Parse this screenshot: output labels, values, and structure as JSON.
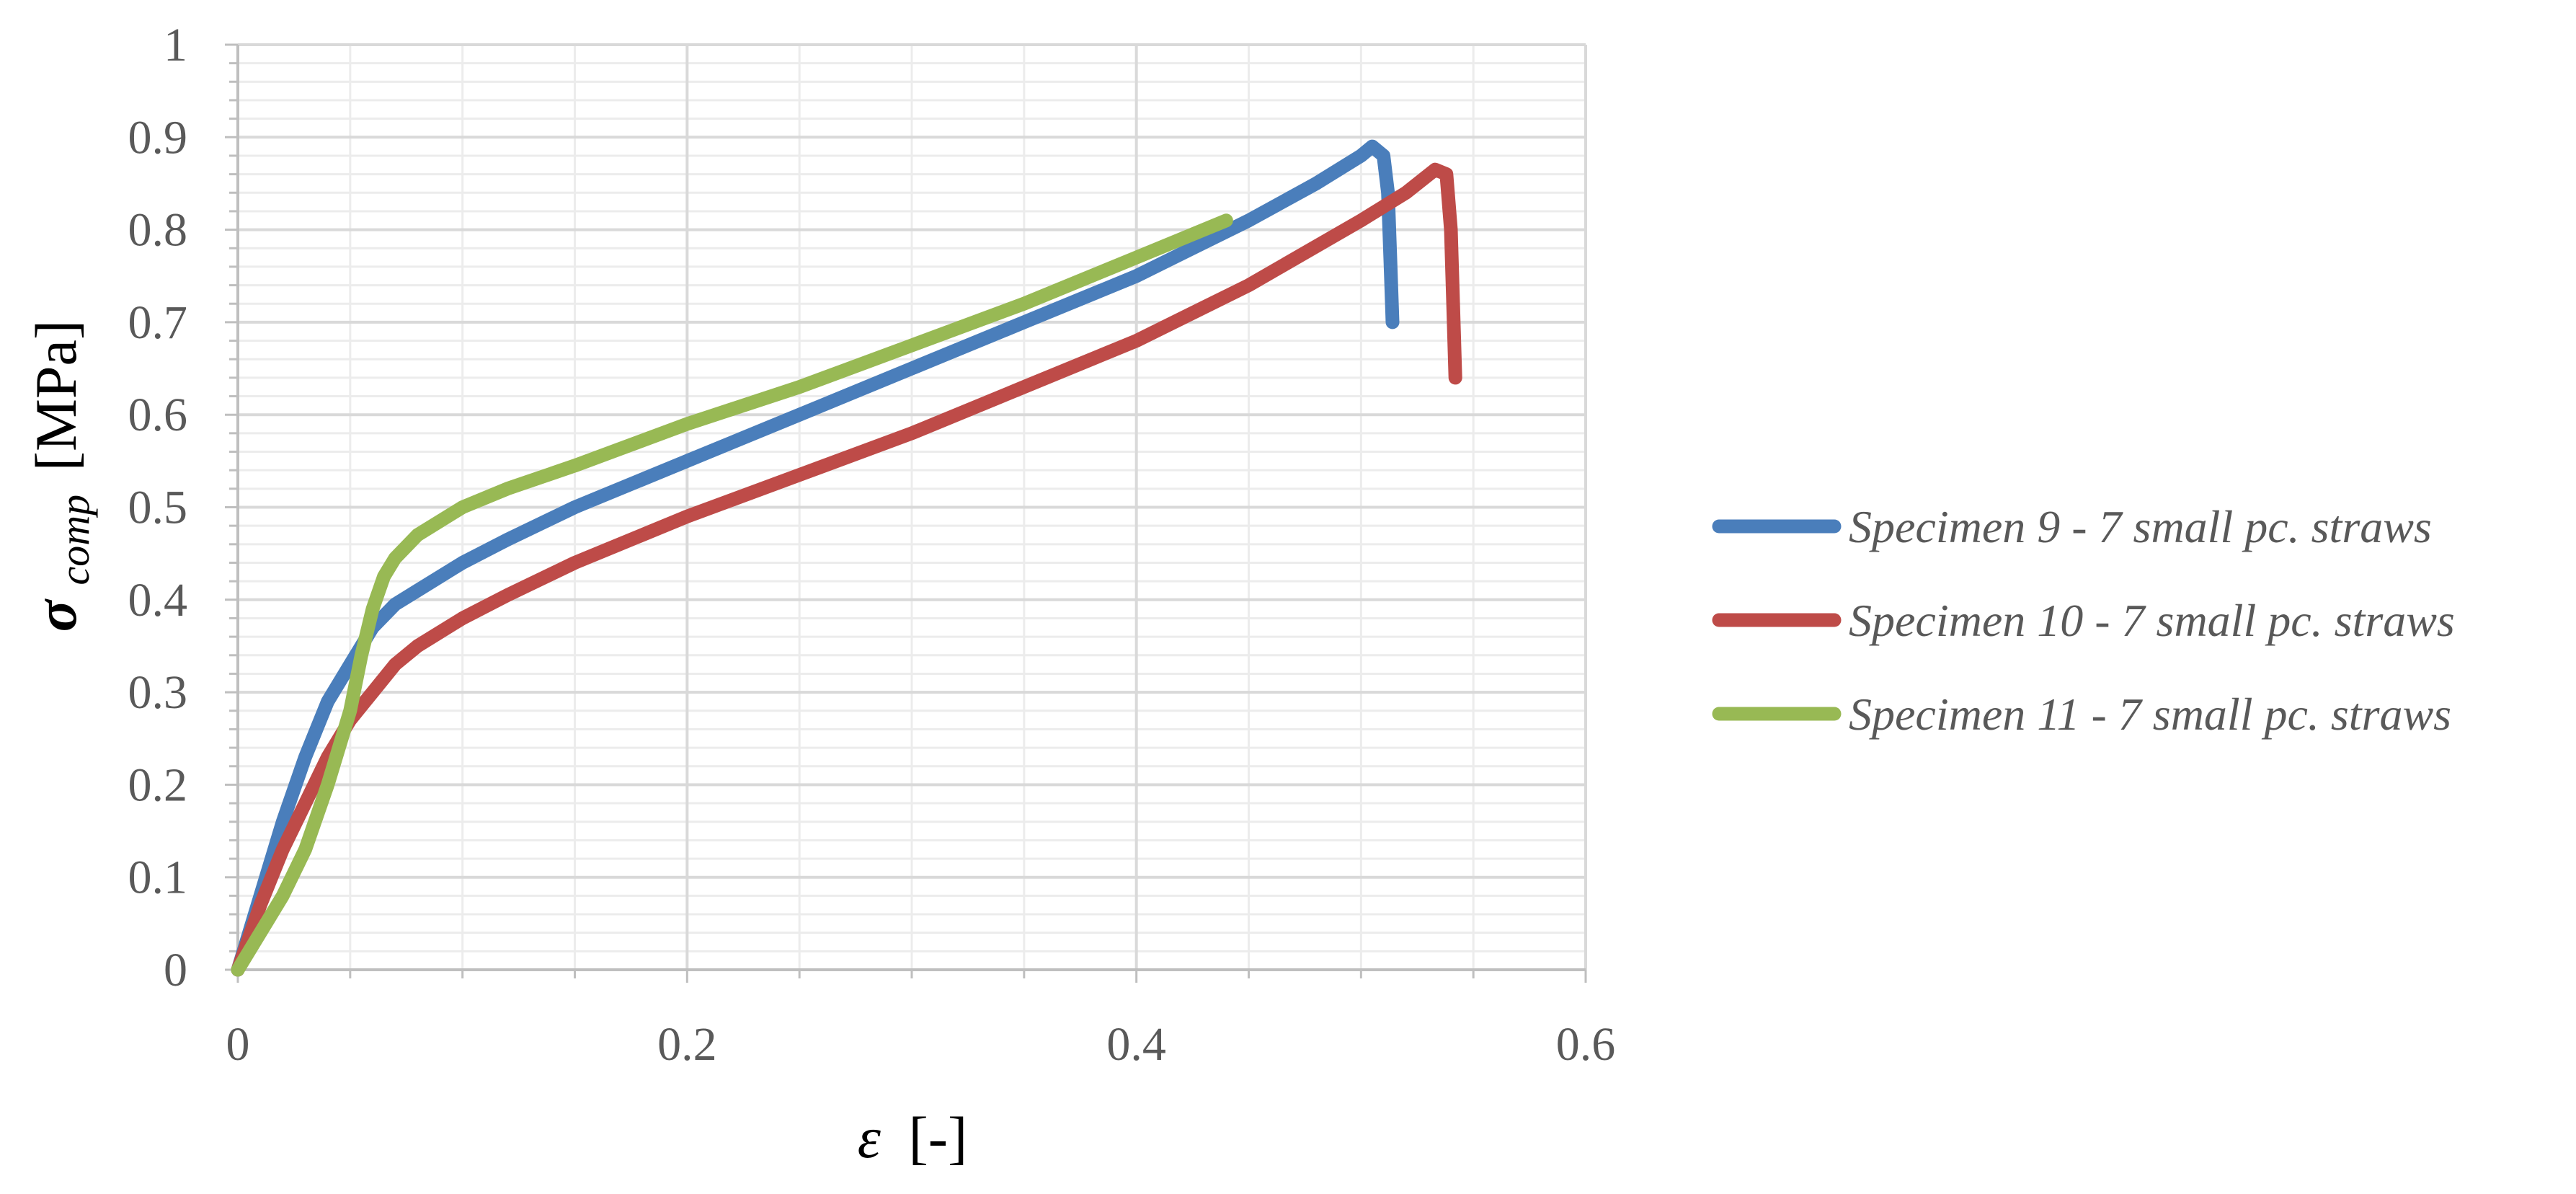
{
  "chart_data": {
    "type": "line",
    "title": "",
    "xlabel": {
      "symbol": "ε",
      "unit": "[-]"
    },
    "ylabel": {
      "symbol": "σ",
      "subscript": "comp",
      "unit": "[MPa]"
    },
    "xlim": [
      0,
      0.6
    ],
    "ylim": [
      0,
      1
    ],
    "x_ticks": [
      "0",
      "0.2",
      "0.4",
      "0.6"
    ],
    "y_ticks": [
      "0",
      "0.1",
      "0.2",
      "0.3",
      "0.4",
      "0.5",
      "0.6",
      "0.7",
      "0.8",
      "0.9",
      "1"
    ],
    "x_tick_values": [
      0,
      0.2,
      0.4,
      0.6
    ],
    "y_tick_values": [
      0,
      0.1,
      0.2,
      0.3,
      0.4,
      0.5,
      0.6,
      0.7,
      0.8,
      0.9,
      1
    ],
    "grid": true,
    "minor_grid": true,
    "legend_position": "right",
    "series": [
      {
        "name": "Specimen 9 - 7 small pc. straws",
        "color": "#4a7ebb",
        "x": [
          0,
          0.01,
          0.02,
          0.03,
          0.04,
          0.05,
          0.06,
          0.07,
          0.08,
          0.1,
          0.12,
          0.15,
          0.2,
          0.25,
          0.3,
          0.35,
          0.4,
          0.45,
          0.48,
          0.5,
          0.505,
          0.51,
          0.512,
          0.513,
          0.514
        ],
        "y": [
          0,
          0.08,
          0.16,
          0.23,
          0.29,
          0.33,
          0.37,
          0.395,
          0.41,
          0.44,
          0.465,
          0.5,
          0.55,
          0.6,
          0.65,
          0.7,
          0.75,
          0.81,
          0.85,
          0.88,
          0.89,
          0.88,
          0.84,
          0.77,
          0.7
        ]
      },
      {
        "name": "Specimen 10 - 7 small pc. straws",
        "color": "#be4b48",
        "x": [
          0,
          0.01,
          0.02,
          0.03,
          0.04,
          0.05,
          0.06,
          0.07,
          0.08,
          0.1,
          0.12,
          0.15,
          0.2,
          0.25,
          0.3,
          0.35,
          0.4,
          0.45,
          0.5,
          0.52,
          0.533,
          0.538,
          0.54,
          0.541,
          0.542
        ],
        "y": [
          0,
          0.07,
          0.13,
          0.18,
          0.23,
          0.27,
          0.3,
          0.33,
          0.35,
          0.38,
          0.405,
          0.44,
          0.49,
          0.535,
          0.58,
          0.63,
          0.68,
          0.74,
          0.81,
          0.84,
          0.865,
          0.86,
          0.8,
          0.72,
          0.64
        ]
      },
      {
        "name": "Specimen 11 - 7 small pc. straws",
        "color": "#98b954",
        "x": [
          0,
          0.01,
          0.02,
          0.03,
          0.04,
          0.05,
          0.055,
          0.06,
          0.065,
          0.07,
          0.08,
          0.1,
          0.12,
          0.15,
          0.2,
          0.25,
          0.3,
          0.35,
          0.4,
          0.44
        ],
        "y": [
          0,
          0.04,
          0.08,
          0.13,
          0.2,
          0.28,
          0.34,
          0.39,
          0.425,
          0.445,
          0.47,
          0.5,
          0.52,
          0.545,
          0.59,
          0.63,
          0.675,
          0.72,
          0.77,
          0.81
        ]
      }
    ]
  }
}
